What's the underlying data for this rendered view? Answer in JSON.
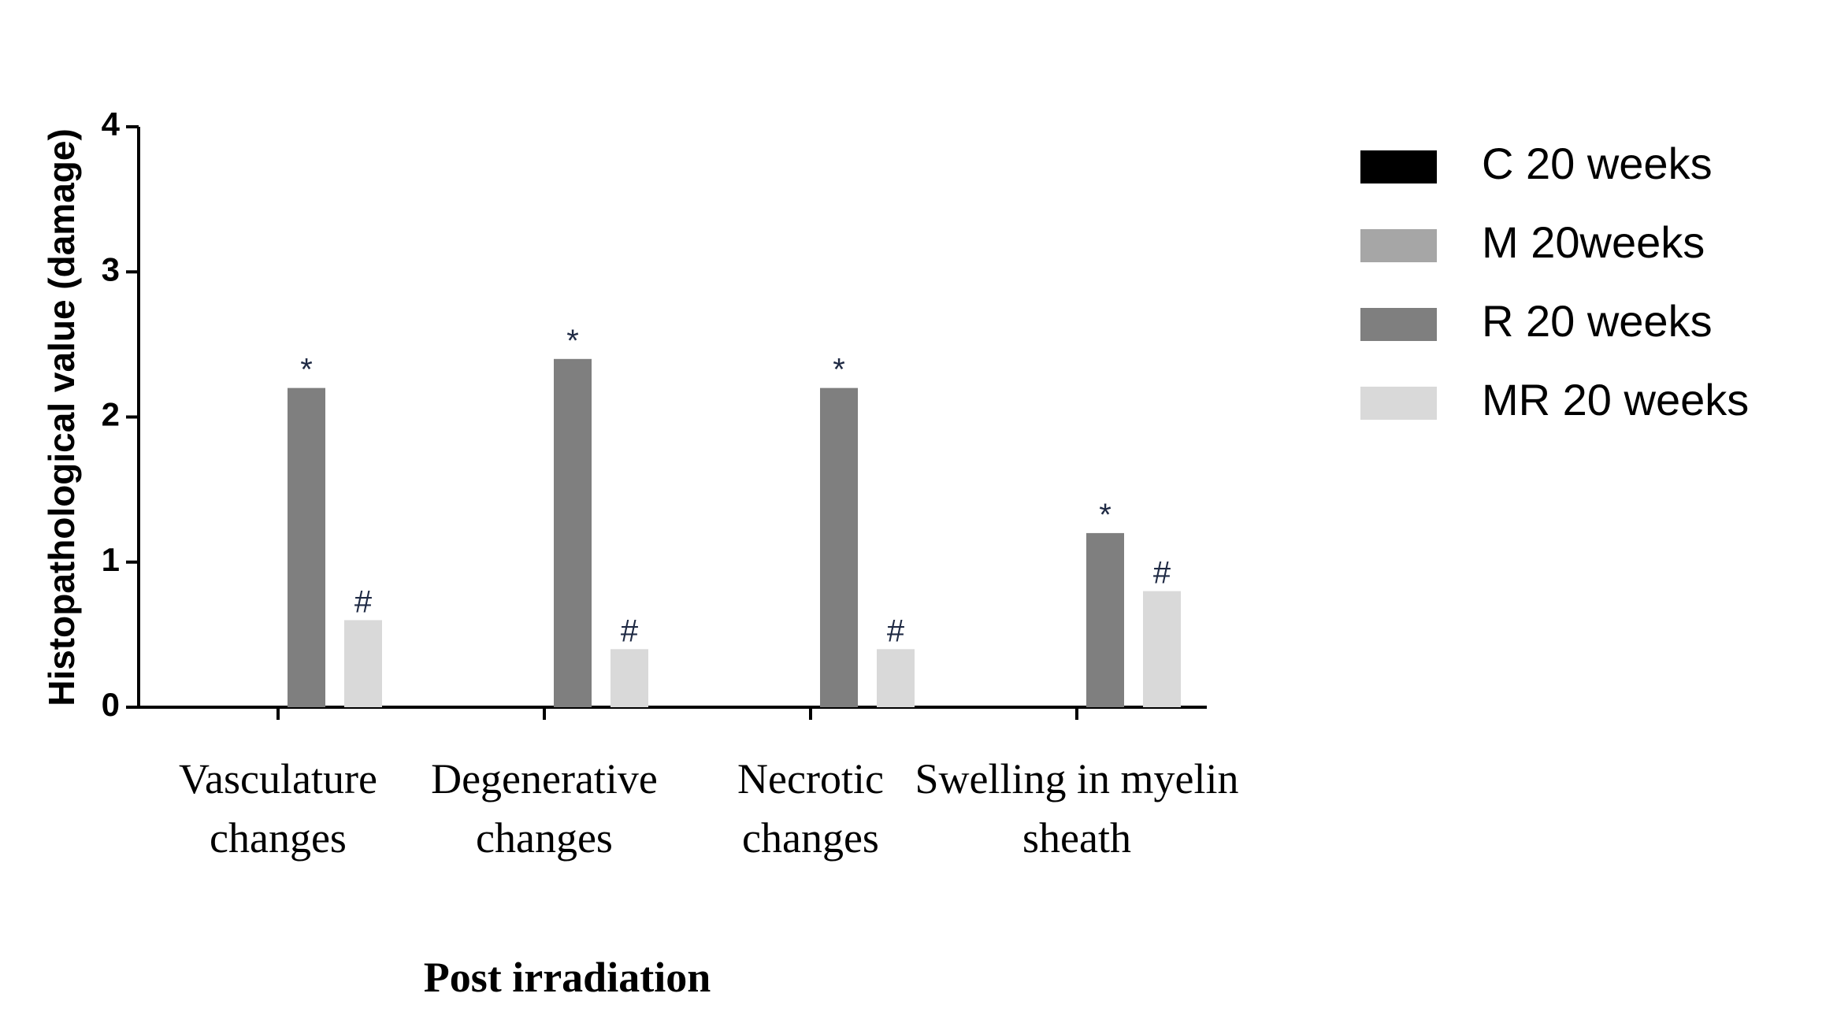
{
  "chart_data": {
    "type": "bar",
    "y_label": "Histopathological value (damage)",
    "x_label": "Post irradiation",
    "categories": [
      "Vasculature changes",
      "Degenerative changes",
      "Necrotic changes",
      "Swelling in myelin sheath"
    ],
    "series": [
      {
        "name": "C 20 weeks",
        "color": "#000000",
        "values": [
          0,
          0,
          0,
          0
        ]
      },
      {
        "name": "M 20weeks",
        "color": "#a6a6a6",
        "values": [
          0,
          0,
          0,
          0
        ]
      },
      {
        "name": "R 20 weeks",
        "color": "#7f7f7f",
        "values": [
          2.2,
          2.4,
          2.2,
          1.2
        ],
        "annotations": [
          "*",
          "*",
          "*",
          "*"
        ]
      },
      {
        "name": "MR 20 weeks",
        "color": "#d9d9d9",
        "values": [
          0.6,
          0.4,
          0.4,
          0.8
        ],
        "annotations": [
          "#",
          "#",
          "#",
          "#"
        ]
      }
    ],
    "ylim": [
      0,
      4
    ],
    "yticks": [
      0,
      1,
      2,
      3,
      4
    ],
    "legend": "right"
  }
}
